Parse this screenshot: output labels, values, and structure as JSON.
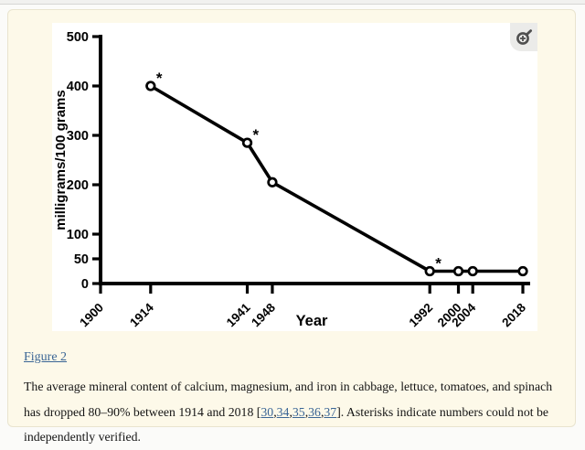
{
  "colors": {
    "panel_bg": "#fdf9e9",
    "panel_border": "#e9e4cf",
    "figure_bg": "#ffffff",
    "link": "#3a6595",
    "line": "#000000",
    "zoom_badge_bg": "#ebebe9",
    "zoom_icon": "#4f4f4f"
  },
  "figure_viewer": {
    "zoom_icon_name": "zoom-in-magnifier"
  },
  "caption": {
    "figure_link_label": "Figure 2",
    "body_start": "The average mineral content of calcium, magnesium, and iron in cabbage, lettuce, tomatoes, and spinach has dropped 80–90% between 1914 and 2018 [",
    "citations": [
      "30",
      "34",
      "35",
      "36",
      "37"
    ],
    "citation_separator": ",",
    "body_end": "]. Asterisks indicate numbers could not be independently verified."
  },
  "chart_data": {
    "type": "line",
    "title": "",
    "xlabel": "Year",
    "ylabel": "milligrams/100 grams",
    "x": [
      1914,
      1941,
      1948,
      1992,
      2000,
      2004,
      2018
    ],
    "y": [
      400,
      285,
      205,
      25,
      25,
      25,
      25
    ],
    "asterisk_years": [
      1914,
      1941,
      1992
    ],
    "asterisk_symbol": "*",
    "x_ticks": [
      1900,
      1914,
      1941,
      1948,
      1992,
      2000,
      2004,
      2018
    ],
    "y_ticks": [
      0,
      50,
      100,
      200,
      300,
      400,
      500
    ],
    "xlim": [
      1900,
      2018
    ],
    "ylim": [
      0,
      500
    ],
    "grid": false,
    "legend": null,
    "marker": "open-circle",
    "line_color": "#000000"
  }
}
